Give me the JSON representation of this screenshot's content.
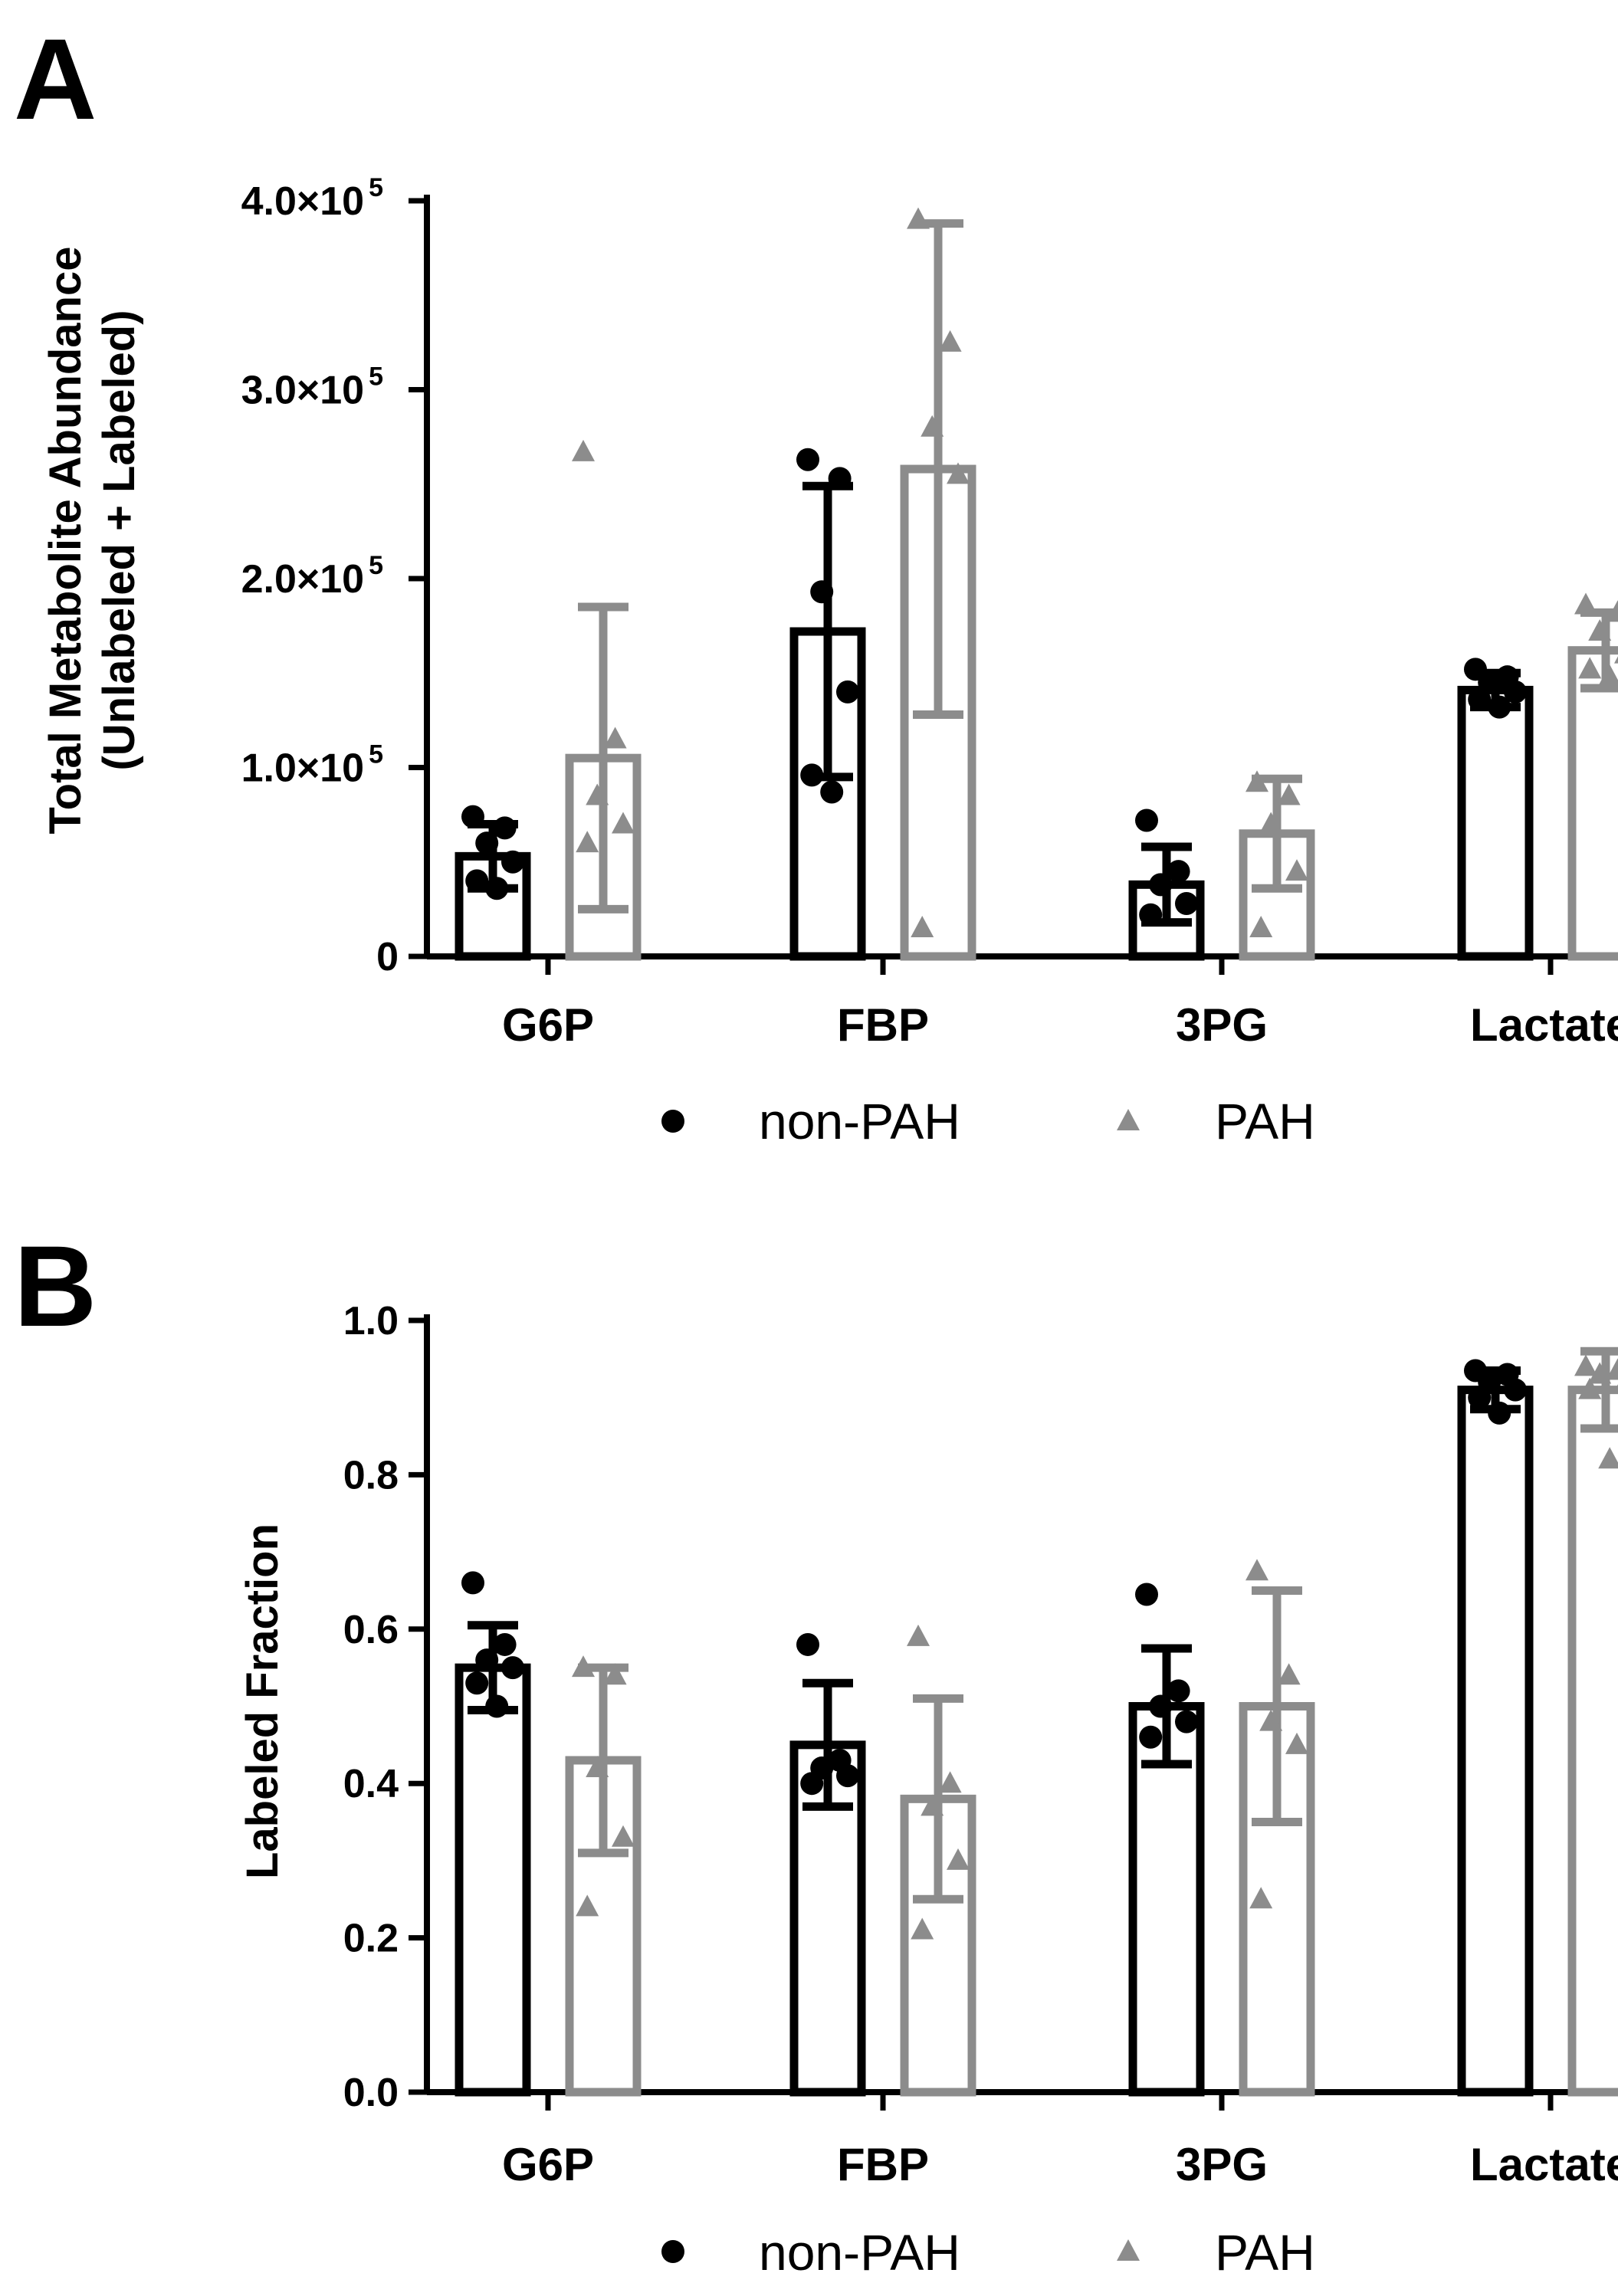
{
  "panels": [
    {
      "letter": "A",
      "ylabel_lines": [
        "Total Metabolite Abundance",
        "(Unlabeled +  Labeled)"
      ],
      "legend": [
        "non-PAH",
        "PAH"
      ]
    },
    {
      "letter": "B",
      "ylabel_lines": [
        "Labeled Fraction"
      ],
      "legend": [
        "non-PAH",
        "PAH"
      ]
    }
  ],
  "colors": {
    "non_pah": "#000000",
    "pah": "#8c8c8c"
  },
  "chart_data": [
    {
      "type": "bar",
      "title": "",
      "xlabel": "",
      "ylabel": "Total Metabolite Abundance (Unlabeled +  Labeled)",
      "ylim": [
        0,
        400000
      ],
      "yticks": [
        0,
        100000,
        200000,
        300000,
        400000
      ],
      "ytick_labels": [
        {
          "base": "0",
          "exp": ""
        },
        {
          "base": "1.0×10",
          "exp": "5"
        },
        {
          "base": "2.0×10",
          "exp": "5"
        },
        {
          "base": "3.0×10",
          "exp": "5"
        },
        {
          "base": "4.0×10",
          "exp": "5"
        }
      ],
      "categories": [
        "G6P",
        "FBP",
        "3PG",
        "Lactate"
      ],
      "series": [
        {
          "name": "non-PAH",
          "marker": "circle",
          "values": [
            53000,
            172000,
            38000,
            141000
          ],
          "sd": [
            17000,
            77000,
            20000,
            9000
          ],
          "points": [
            [
              74000,
              68000,
              60000,
              50000,
              40000,
              36000
            ],
            [
              263000,
              253000,
              193000,
              140000,
              96000,
              87000
            ],
            [
              72000,
              45000,
              38000,
              28000,
              22000
            ],
            [
              152000,
              148000,
              145000,
              140000,
              136000,
              132000
            ]
          ]
        },
        {
          "name": "PAH",
          "marker": "triangle",
          "values": [
            105000,
            258000,
            65000,
            162000
          ],
          "sd": [
            80000,
            130000,
            29000,
            20000
          ],
          "points": [
            [
              267000,
              115000,
              85000,
              70000,
              60000
            ],
            [
              390000,
              325000,
              280000,
              255000,
              15000
            ],
            [
              92000,
              85000,
              70000,
              45000,
              15000
            ],
            [
              186000,
              182000,
              172000,
              160000,
              152000,
              148000
            ]
          ]
        }
      ],
      "legend": [
        "non-PAH",
        "PAH"
      ],
      "legend_position": "bottom"
    },
    {
      "type": "bar",
      "title": "",
      "xlabel": "",
      "ylabel": "Labeled Fraction",
      "ylim": [
        0,
        1.0
      ],
      "yticks": [
        0,
        0.2,
        0.4,
        0.6,
        0.8,
        1.0
      ],
      "ytick_labels": [
        {
          "base": "0.0",
          "exp": ""
        },
        {
          "base": "0.2",
          "exp": ""
        },
        {
          "base": "0.4",
          "exp": ""
        },
        {
          "base": "0.6",
          "exp": ""
        },
        {
          "base": "0.8",
          "exp": ""
        },
        {
          "base": "1.0",
          "exp": ""
        }
      ],
      "categories": [
        "G6P",
        "FBP",
        "3PG",
        "Lactate"
      ],
      "series": [
        {
          "name": "non-PAH",
          "marker": "circle",
          "values": [
            0.55,
            0.45,
            0.5,
            0.91
          ],
          "sd": [
            0.055,
            0.08,
            0.075,
            0.025
          ],
          "points": [
            [
              0.66,
              0.58,
              0.56,
              0.55,
              0.53,
              0.5
            ],
            [
              0.58,
              0.43,
              0.42,
              0.41,
              0.4
            ],
            [
              0.645,
              0.52,
              0.5,
              0.48,
              0.46
            ],
            [
              0.935,
              0.93,
              0.92,
              0.91,
              0.9,
              0.88
            ]
          ]
        },
        {
          "name": "PAH",
          "marker": "triangle",
          "values": [
            0.43,
            0.38,
            0.5,
            0.91
          ],
          "sd": [
            0.12,
            0.13,
            0.15,
            0.05
          ],
          "points": [
            [
              0.55,
              0.54,
              0.42,
              0.33,
              0.24
            ],
            [
              0.59,
              0.4,
              0.37,
              0.3,
              0.21
            ],
            [
              0.675,
              0.54,
              0.48,
              0.45,
              0.25
            ],
            [
              0.94,
              0.935,
              0.93,
              0.92,
              0.91,
              0.82
            ]
          ]
        }
      ],
      "legend": [
        "non-PAH",
        "PAH"
      ],
      "legend_position": "bottom"
    }
  ]
}
